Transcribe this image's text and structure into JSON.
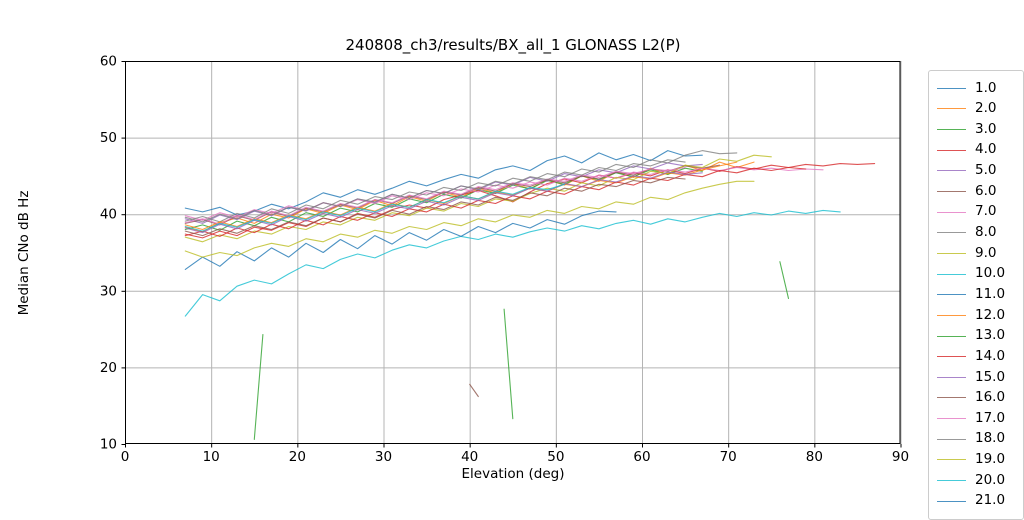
{
  "chart_data": {
    "type": "line",
    "title": "240808_ch3/results/BX_all_1 GLONASS L2(P)",
    "xlabel": "Elevation (deg)",
    "ylabel": "Median CNo dB Hz",
    "xlim": [
      0,
      90
    ],
    "ylim": [
      10,
      60
    ],
    "x_tick_labels": [
      "0",
      "10",
      "20",
      "30",
      "40",
      "50",
      "60",
      "70",
      "80",
      "90"
    ],
    "y_tick_labels": [
      "10",
      "20",
      "30",
      "40",
      "50",
      "60"
    ],
    "x_ticks": [
      0,
      10,
      20,
      30,
      40,
      50,
      60,
      70,
      80,
      90
    ],
    "y_ticks": [
      10,
      20,
      30,
      40,
      50,
      60
    ],
    "grid": true,
    "grid_color": "#b4b4b4",
    "line_alpha": 0.8,
    "legend_position": "outside-right, clipped at image right and bottom edges",
    "legend_cropped_entry": {
      "label": "21.0",
      "color": "#1f77b4"
    },
    "series": [
      {
        "name": "1.0",
        "color": "#1f77b4",
        "segments": [
          {
            "x_start": 7,
            "x_step": 2,
            "y": [
              40.8,
              40.3,
              40.9,
              39.9,
              40.4,
              41.3,
              40.7,
              41.6,
              42.8,
              42.2,
              43.2,
              42.6,
              43.4,
              44.3,
              43.7,
              44.5,
              45.2,
              44.7,
              45.8,
              46.3,
              45.7,
              47.0,
              47.6,
              46.7,
              48.0,
              47.1,
              47.8,
              47.0,
              48.3,
              47.6,
              47.7
            ]
          }
        ]
      },
      {
        "name": "2.0",
        "color": "#ff7f0e",
        "segments": [
          {
            "x_start": 7,
            "x_step": 2,
            "y": [
              38.3,
              37.7,
              38.9,
              39.5,
              38.8,
              40.0,
              39.5,
              40.7,
              40.1,
              41.2,
              40.6,
              41.8,
              41.1,
              42.3,
              41.7,
              42.9,
              42.2,
              43.4,
              42.8,
              44.0,
              43.3,
              44.5,
              43.8,
              45.0,
              44.3,
              45.5,
              44.8,
              46.0,
              45.2,
              46.4,
              45.7,
              46.8,
              46.1,
              46.8
            ]
          }
        ]
      },
      {
        "name": "3.0",
        "color": "#2ca02c",
        "segments": [
          {
            "x_start": 7,
            "x_step": 2,
            "y": [
              38.0,
              38.6,
              37.9,
              39.1,
              38.5,
              39.6,
              39.0,
              40.2,
              39.7,
              40.8,
              40.3,
              41.4,
              40.9,
              42.0,
              41.5,
              42.6,
              42.1,
              43.2,
              42.7,
              43.8,
              43.3,
              44.4,
              43.9,
              45.0,
              44.5,
              45.4,
              44.9,
              45.8,
              45.2,
              46.0,
              45.6
            ]
          },
          {
            "points": [
              [
                76,
                33.8
              ],
              [
                77,
                29.0
              ]
            ]
          }
        ]
      },
      {
        "name": "4.0",
        "color": "#d62728",
        "segments": [
          {
            "x_start": 7,
            "x_step": 2,
            "y": [
              37.4,
              36.9,
              37.8,
              37.2,
              38.3,
              37.9,
              38.9,
              38.4,
              39.5,
              39.0,
              40.1,
              39.6,
              40.6,
              41.2,
              40.8,
              41.9,
              42.5,
              43.1,
              42.4,
              41.6,
              42.9,
              44.0,
              44.6,
              44.1,
              45.1,
              44.7,
              45.4,
              45.0,
              45.8,
              45.3,
              46.0,
              45.6,
              46.2,
              45.9,
              46.4,
              46.1,
              46.5,
              46.3,
              46.6,
              46.5,
              46.6
            ]
          }
        ]
      },
      {
        "name": "5.0",
        "color": "#9467bd",
        "segments": [
          {
            "x_start": 7,
            "x_step": 2,
            "y": [
              39.4,
              38.8,
              39.9,
              39.3,
              40.4,
              39.8,
              40.9,
              40.4,
              41.5,
              41.0,
              42.0,
              41.5,
              42.6,
              42.1,
              43.1,
              42.7,
              43.7,
              43.2,
              44.2,
              43.8,
              44.8,
              44.3,
              45.3,
              44.9,
              45.8,
              45.4,
              46.3,
              45.9,
              46.7,
              46.3,
              46.5
            ]
          }
        ]
      },
      {
        "name": "6.0",
        "color": "#8c564b",
        "segments": [
          {
            "x_start": 7,
            "x_step": 2,
            "y": [
              38.8,
              39.3,
              38.6,
              39.8,
              39.2,
              40.3,
              39.7,
              40.8,
              40.3,
              41.3,
              40.8,
              41.9,
              41.4,
              42.4,
              41.9,
              42.9,
              42.5,
              43.5,
              43.0,
              44.0,
              43.6,
              44.5,
              44.1,
              45.0,
              44.6,
              45.5,
              45.1,
              45.9,
              45.6,
              46.3,
              46.0,
              46.4
            ]
          }
        ]
      },
      {
        "name": "7.0",
        "color": "#e377c2",
        "segments": [
          {
            "x_start": 7,
            "x_step": 2,
            "y": [
              39.8,
              39.2,
              40.2,
              39.6,
              40.6,
              40.1,
              41.1,
              40.5,
              41.5,
              41.0,
              41.9,
              41.4,
              42.4,
              41.9,
              42.8,
              42.4,
              43.3,
              42.9,
              43.8,
              43.4,
              44.2,
              43.8,
              44.7,
              44.3,
              45.1,
              44.7,
              45.5,
              45.2,
              45.8,
              45.5,
              46.0,
              45.7,
              46.1,
              45.8,
              46.0,
              45.7,
              45.9,
              45.8
            ]
          }
        ]
      },
      {
        "name": "8.0",
        "color": "#7f7f7f",
        "segments": [
          {
            "x_start": 7,
            "x_step": 2,
            "y": [
              39.1,
              39.7,
              39.0,
              40.1,
              39.5,
              40.7,
              40.1,
              41.2,
              40.7,
              41.8,
              41.3,
              42.3,
              41.9,
              42.9,
              42.5,
              43.5,
              43.1,
              44.1,
              43.7,
              44.7,
              44.3,
              45.3,
              44.9,
              45.9,
              45.5,
              46.5,
              46.1,
              47.1,
              46.7,
              47.7,
              48.3,
              47.9,
              48.0
            ]
          }
        ]
      },
      {
        "name": "9.0",
        "color": "#bcbd22",
        "segments": [
          {
            "x_start": 7,
            "x_step": 2,
            "y": [
              37.0,
              36.4,
              37.3,
              36.8,
              37.8,
              37.4,
              38.4,
              38.0,
              39.0,
              38.6,
              39.6,
              39.2,
              40.2,
              39.8,
              40.8,
              40.4,
              41.4,
              41.0,
              42.0,
              41.7,
              42.7,
              43.4,
              43.0,
              44.1,
              43.7,
              44.8,
              44.5,
              45.6,
              45.3,
              46.4,
              46.1,
              47.2,
              46.9,
              47.7,
              47.5
            ]
          }
        ]
      },
      {
        "name": "10.0",
        "color": "#17becf",
        "segments": [
          {
            "x_start": 7,
            "x_step": 2,
            "y": [
              26.7,
              29.5,
              28.7,
              30.6,
              31.4,
              30.9,
              32.2,
              33.4,
              32.9,
              34.1,
              34.8,
              34.3,
              35.3,
              36.0,
              35.6,
              36.5,
              37.1,
              36.7,
              37.4,
              37.0,
              37.7,
              38.2,
              37.8,
              38.5,
              38.1,
              38.8,
              39.2,
              38.7,
              39.4,
              39.0,
              39.6,
              40.1,
              39.7,
              40.2,
              39.9,
              40.4,
              40.1,
              40.5,
              40.3
            ]
          }
        ]
      },
      {
        "name": "11.0",
        "color": "#1f77b4",
        "segments": [
          {
            "x_start": 7,
            "x_step": 2,
            "y": [
              32.8,
              34.4,
              33.2,
              35.1,
              33.9,
              35.6,
              34.4,
              36.2,
              35.0,
              36.7,
              35.5,
              37.2,
              36.1,
              37.6,
              36.6,
              38.0,
              37.1,
              38.4,
              37.6,
              38.8,
              38.2,
              39.3,
              38.7,
              39.8,
              40.4,
              40.3
            ]
          }
        ]
      },
      {
        "name": "12.0",
        "color": "#ff7f0e",
        "segments": [
          {
            "x_start": 7,
            "x_step": 2,
            "y": [
              38.6,
              38.0,
              39.0,
              38.4,
              39.4,
              38.9,
              39.9,
              39.4,
              40.4,
              39.9,
              40.9,
              40.4,
              41.4,
              40.9,
              41.9,
              41.4,
              42.4,
              42.0,
              42.9,
              42.5,
              43.4,
              43.0,
              43.9,
              43.6,
              44.4,
              44.1,
              44.9,
              44.6,
              45.4,
              45.1,
              45.8,
              46.3,
              46.8
            ]
          }
        ]
      },
      {
        "name": "13.0",
        "color": "#2ca02c",
        "segments": [
          {
            "points": [
              [
                15.0,
                10.6
              ],
              [
                16.0,
                24.3
              ]
            ]
          },
          {
            "points": [
              [
                44.0,
                27.6
              ],
              [
                45.0,
                13.3
              ]
            ]
          }
        ]
      },
      {
        "name": "14.0",
        "color": "#d62728",
        "segments": [
          {
            "x_start": 7,
            "x_step": 2,
            "y": [
              37.2,
              37.8,
              37.1,
              38.2,
              37.6,
              38.7,
              38.1,
              39.2,
              38.6,
              39.7,
              39.2,
              40.2,
              39.7,
              40.7,
              40.3,
              41.3,
              40.8,
              41.8,
              41.4,
              42.4,
              42.0,
              43.0,
              42.6,
              43.6,
              43.2,
              44.2,
              43.8,
              44.7,
              44.4,
              45.2,
              44.9,
              45.7,
              45.4,
              46.0,
              45.7,
              46.1,
              45.9
            ]
          }
        ]
      },
      {
        "name": "15.0",
        "color": "#9467bd",
        "segments": [
          {
            "x_start": 7,
            "x_step": 2,
            "y": [
              38.2,
              37.6,
              38.7,
              38.1,
              39.2,
              38.6,
              39.7,
              39.1,
              40.1,
              39.6,
              40.6,
              40.1,
              41.1,
              40.7,
              41.7,
              41.2,
              42.2,
              41.8,
              42.8,
              42.4,
              43.4,
              43.0,
              44.0,
              43.6,
              44.5,
              44.2,
              45.0,
              44.7,
              45.5,
              45.2,
              45.4
            ]
          }
        ]
      },
      {
        "name": "16.0",
        "color": "#8c564b",
        "segments": [
          {
            "x_start": 7,
            "x_step": 2,
            "y": [
              37.8,
              37.2,
              38.1,
              37.5,
              38.5,
              38.0,
              39.0,
              38.5,
              39.5,
              39.0,
              40.0,
              39.5,
              40.5,
              40.0,
              41.0,
              40.6,
              41.6,
              41.2,
              42.2,
              41.8,
              42.8,
              42.4,
              43.4,
              43.0,
              43.9,
              43.6,
              44.4,
              44.1,
              44.8,
              44.6
            ]
          },
          {
            "points": [
              [
                40,
                17.8
              ],
              [
                41,
                16.2
              ]
            ]
          }
        ]
      },
      {
        "name": "17.0",
        "color": "#e377c2",
        "segments": [
          {
            "x_start": 7,
            "x_step": 2,
            "y": [
              38.9,
              39.4,
              38.7,
              39.9,
              39.3,
              40.4,
              39.8,
              40.9,
              40.4,
              41.4,
              40.9,
              41.9,
              41.5,
              42.5,
              42.0,
              43.0,
              42.6,
              43.6,
              43.2,
              44.1,
              43.8,
              44.6,
              44.3,
              45.1,
              44.8,
              45.6,
              45.3,
              45.9,
              45.7,
              46.1
            ]
          }
        ]
      },
      {
        "name": "18.0",
        "color": "#7f7f7f",
        "segments": [
          {
            "x_start": 7,
            "x_step": 2,
            "y": [
              39.6,
              39.0,
              40.0,
              39.4,
              40.5,
              39.9,
              40.9,
              40.5,
              41.5,
              41.0,
              42.0,
              41.6,
              42.6,
              42.1,
              43.1,
              42.7,
              43.7,
              43.3,
              44.3,
              43.9,
              44.9,
              44.5,
              45.5,
              45.1,
              46.1,
              45.7,
              46.6,
              46.3,
              47.1,
              46.8
            ]
          }
        ]
      },
      {
        "name": "19.0",
        "color": "#bcbd22",
        "segments": [
          {
            "x_start": 7,
            "x_step": 2,
            "y": [
              35.2,
              34.4,
              35.0,
              34.6,
              35.6,
              36.2,
              35.8,
              36.8,
              36.4,
              37.4,
              37.0,
              37.9,
              37.5,
              38.4,
              38.0,
              38.9,
              38.5,
              39.4,
              39.0,
              39.9,
              39.6,
              40.5,
              40.1,
              41.0,
              40.7,
              41.6,
              41.3,
              42.2,
              41.9,
              42.8,
              43.4,
              43.9,
              44.3,
              44.3
            ]
          }
        ]
      },
      {
        "name": "20.0",
        "color": "#17becf",
        "segments": [
          {
            "x_start": 7,
            "x_step": 2,
            "y": [
              38.4,
              37.8,
              38.8,
              38.3,
              39.3,
              38.8,
              39.8,
              39.3,
              40.3,
              39.8,
              40.8,
              40.3,
              41.3,
              40.9,
              41.9,
              41.5,
              42.4,
              42.0,
              43.0,
              42.6,
              43.5,
              43.2,
              43.9
            ]
          }
        ]
      }
    ]
  }
}
